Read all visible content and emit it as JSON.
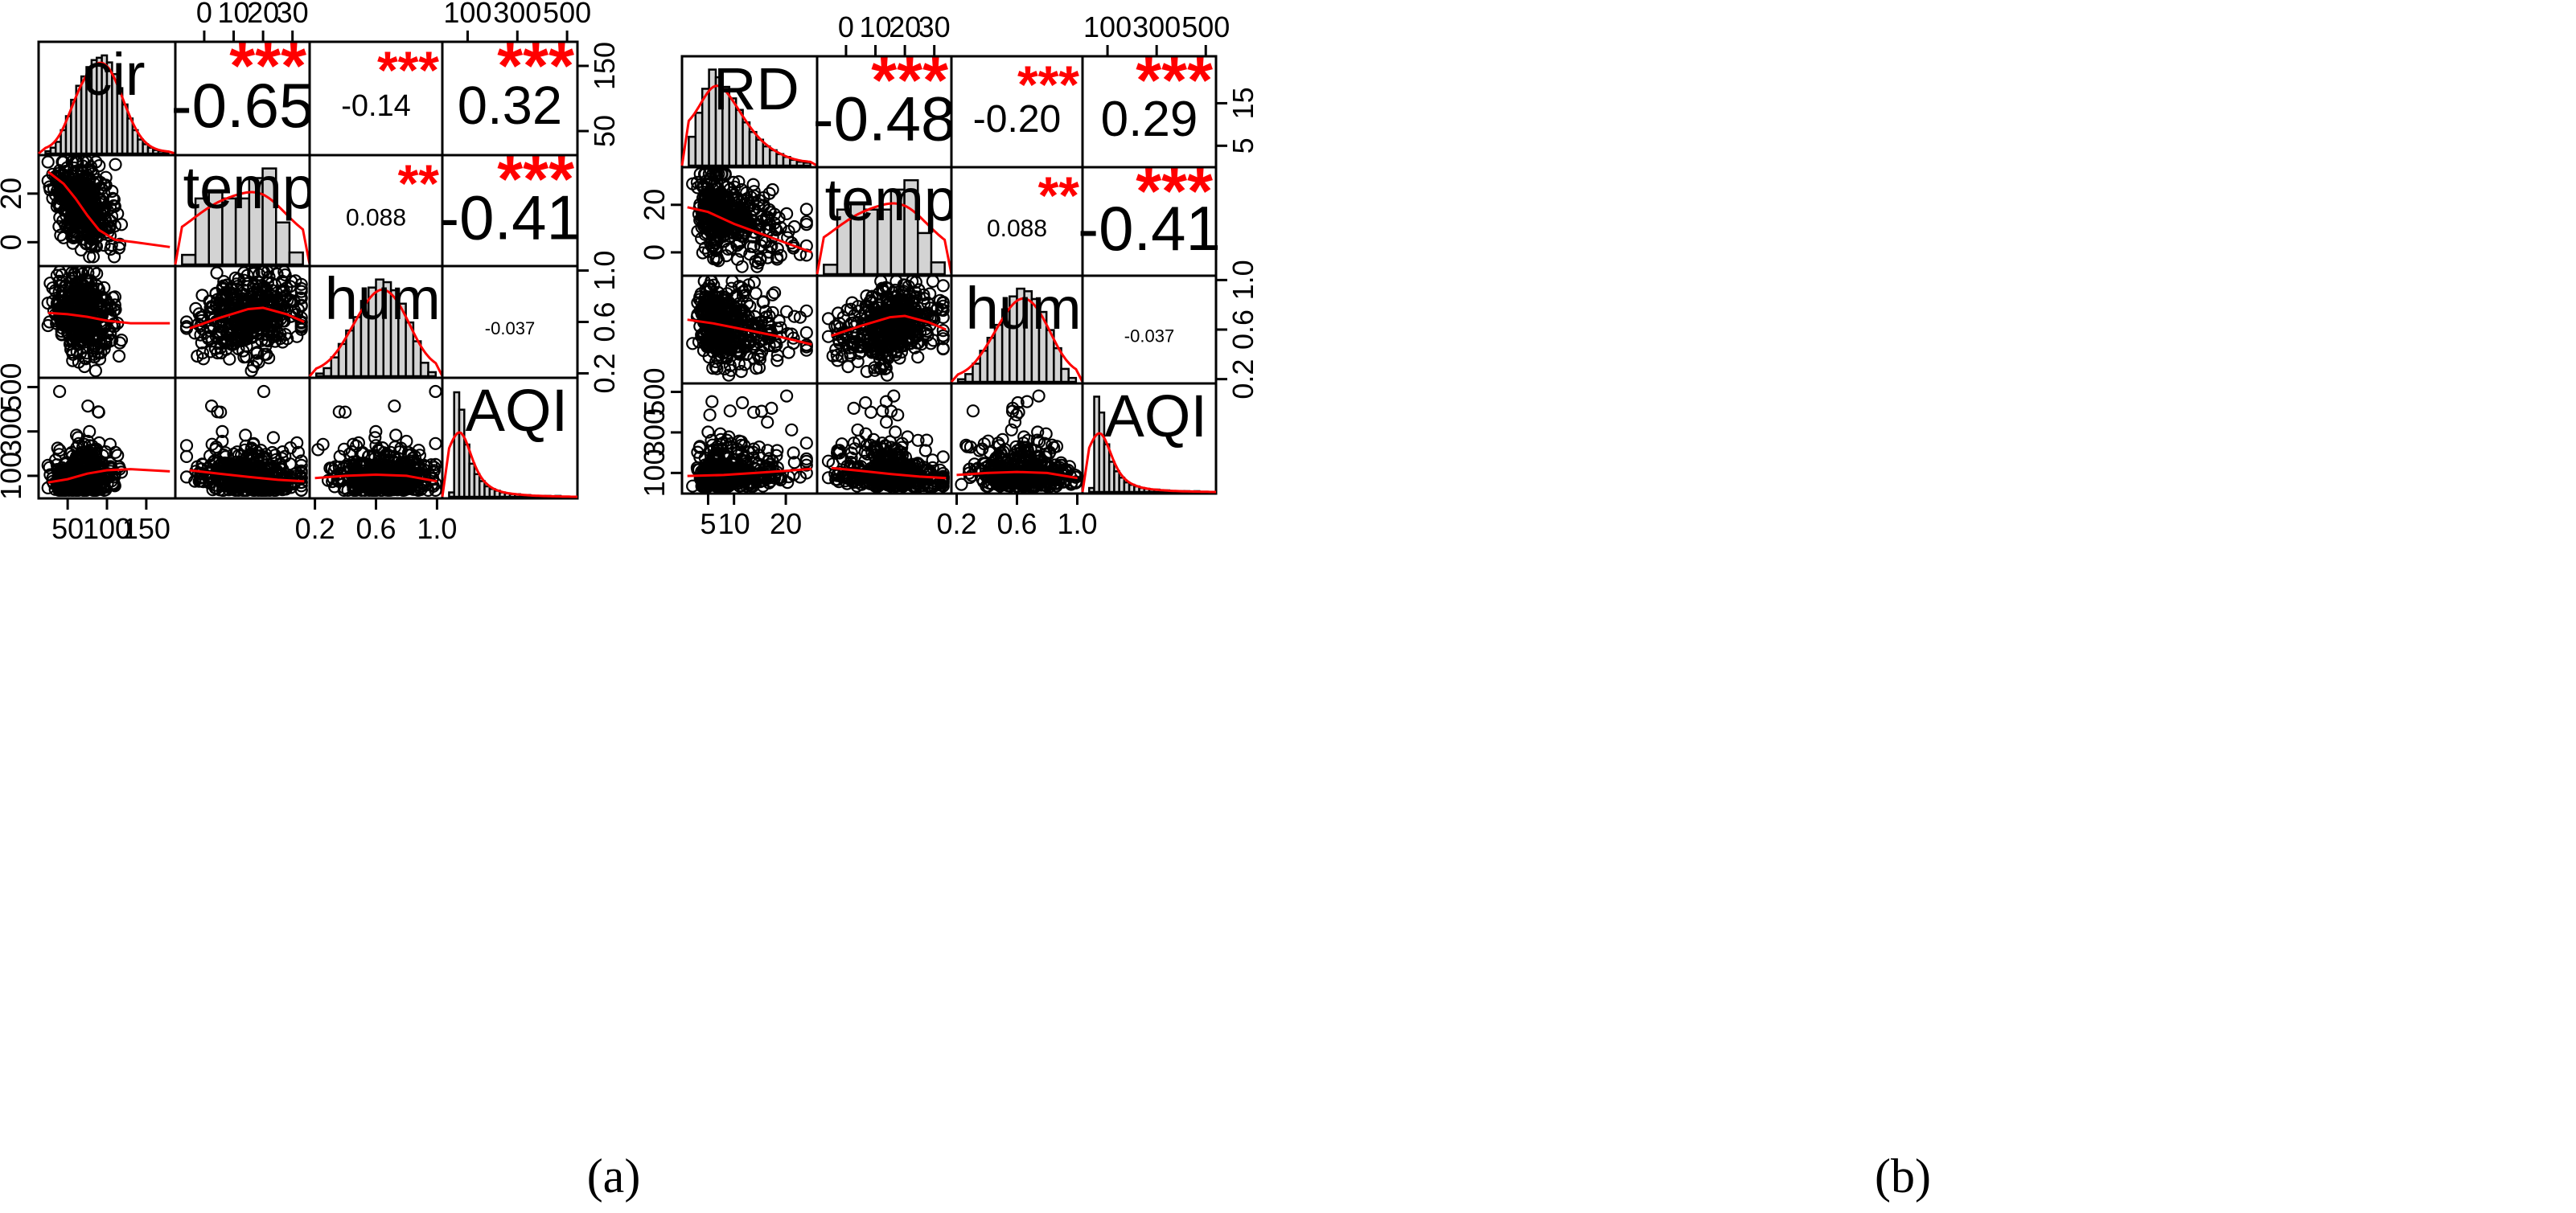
{
  "chart_data": [
    {
      "type": "scatter-matrix",
      "panel_label": "(a)",
      "variables": [
        "cir",
        "temp",
        "hum",
        "AQI"
      ],
      "correlations": [
        {
          "pair": [
            "cir",
            "temp"
          ],
          "r": "-0.65",
          "stars": "***"
        },
        {
          "pair": [
            "cir",
            "hum"
          ],
          "r": "-0.14",
          "stars": "***"
        },
        {
          "pair": [
            "cir",
            "AQI"
          ],
          "r": "0.32",
          "stars": "***"
        },
        {
          "pair": [
            "temp",
            "hum"
          ],
          "r": "0.088",
          "stars": "**"
        },
        {
          "pair": [
            "temp",
            "AQI"
          ],
          "r": "-0.41",
          "stars": "***"
        },
        {
          "pair": [
            "hum",
            "AQI"
          ],
          "r": "-0.037",
          "stars": ""
        }
      ],
      "axes": {
        "cir": {
          "range": [
            20,
            180
          ],
          "ticks": [
            50,
            100,
            150
          ]
        },
        "temp": {
          "range": [
            -8,
            34
          ],
          "ticks": [
            0,
            10,
            20,
            30
          ]
        },
        "hum": {
          "range": [
            0.2,
            1.0
          ],
          "ticks": [
            0.2,
            0.6,
            1.0
          ]
        },
        "AQI": {
          "range": [
            20,
            520
          ],
          "ticks": [
            100,
            300,
            500
          ]
        }
      },
      "y_axis_labels": {
        "cir": [
          "50",
          "150"
        ],
        "temp": [
          "0",
          "20"
        ],
        "hum": [
          "0.2",
          "0.6",
          "1.0"
        ],
        "AQI": [
          "100",
          "300",
          "500"
        ]
      },
      "y_axis_ticks": {
        "cir": [
          50,
          150
        ],
        "temp": [
          0,
          20
        ],
        "hum": [
          0.2,
          0.6,
          1.0
        ],
        "AQI": [
          100,
          300,
          500
        ]
      },
      "top_axis_labels": {
        "temp": [
          "0",
          "10",
          "20",
          "30"
        ],
        "AQI": [
          "100",
          "300",
          "500"
        ]
      },
      "bottom_axis_labels": {
        "cir": [
          "50",
          "100",
          "150"
        ],
        "hum": [
          "0.2",
          "0.6",
          "1.0"
        ]
      },
      "histograms": {
        "cir": {
          "range": [
            20,
            180
          ],
          "counts": [
            2,
            5,
            10,
            20,
            32,
            46,
            58,
            66,
            74,
            80,
            82,
            84,
            78,
            68,
            56,
            42,
            30,
            20,
            12,
            8,
            5,
            3,
            2,
            1
          ]
        },
        "temp": {
          "range": [
            -8,
            34
          ],
          "counts": [
            8,
            55,
            60,
            55,
            55,
            72,
            80,
            35,
            10
          ]
        },
        "hum": {
          "range": [
            0.2,
            1.0
          ],
          "counts": [
            2,
            6,
            14,
            24,
            34,
            44,
            56,
            66,
            72,
            70,
            64,
            54,
            40,
            26,
            10,
            3
          ]
        },
        "AQI": {
          "range": [
            20,
            520
          ],
          "counts": [
            5,
            120,
            100,
            60,
            38,
            26,
            18,
            12,
            9,
            7,
            5,
            4,
            3,
            3,
            2,
            2,
            1,
            1,
            1,
            1,
            0,
            1,
            0,
            0
          ]
        }
      },
      "smoothers": {
        "temp~cir": [
          [
            25,
            29
          ],
          [
            45,
            24
          ],
          [
            60,
            18
          ],
          [
            75,
            11
          ],
          [
            90,
            5
          ],
          [
            110,
            1
          ],
          [
            135,
            0
          ],
          [
            180,
            -2
          ]
        ],
        "hum~cir": [
          [
            25,
            0.67
          ],
          [
            50,
            0.66
          ],
          [
            75,
            0.64
          ],
          [
            100,
            0.61
          ],
          [
            130,
            0.59
          ],
          [
            180,
            0.59
          ]
        ],
        "AQI~cir": [
          [
            25,
            70
          ],
          [
            50,
            85
          ],
          [
            75,
            110
          ],
          [
            100,
            125
          ],
          [
            130,
            130
          ],
          [
            180,
            120
          ]
        ],
        "hum~temp": [
          [
            -5,
            0.55
          ],
          [
            5,
            0.63
          ],
          [
            15,
            0.7
          ],
          [
            20,
            0.71
          ],
          [
            28,
            0.66
          ],
          [
            34,
            0.6
          ]
        ],
        "AQI~temp": [
          [
            -5,
            125
          ],
          [
            5,
            110
          ],
          [
            15,
            95
          ],
          [
            25,
            82
          ],
          [
            34,
            75
          ]
        ],
        "AQI~hum": [
          [
            0.2,
            90
          ],
          [
            0.4,
            100
          ],
          [
            0.6,
            105
          ],
          [
            0.8,
            100
          ],
          [
            1.0,
            75
          ]
        ]
      }
    },
    {
      "type": "scatter-matrix",
      "panel_label": "(b)",
      "variables": [
        "RD",
        "temp",
        "hum",
        "AQI"
      ],
      "correlations": [
        {
          "pair": [
            "RD",
            "temp"
          ],
          "r": "-0.48",
          "stars": "***"
        },
        {
          "pair": [
            "RD",
            "hum"
          ],
          "r": "-0.20",
          "stars": "***"
        },
        {
          "pair": [
            "RD",
            "AQI"
          ],
          "r": "0.29",
          "stars": "***"
        },
        {
          "pair": [
            "temp",
            "hum"
          ],
          "r": "0.088",
          "stars": "**"
        },
        {
          "pair": [
            "temp",
            "AQI"
          ],
          "r": "-0.41",
          "stars": "***"
        },
        {
          "pair": [
            "hum",
            "AQI"
          ],
          "r": "-0.037",
          "stars": ""
        }
      ],
      "axes": {
        "RD": {
          "range": [
            1,
            25
          ],
          "ticks": [
            5,
            10,
            20
          ]
        },
        "temp": {
          "range": [
            -8,
            34
          ],
          "ticks": [
            0,
            10,
            20,
            30
          ]
        },
        "hum": {
          "range": [
            0.2,
            1.0
          ],
          "ticks": [
            0.2,
            0.6,
            1.0
          ]
        },
        "AQI": {
          "range": [
            20,
            520
          ],
          "ticks": [
            100,
            300,
            500
          ]
        }
      },
      "y_axis_labels": {
        "RD": [
          "5",
          "15"
        ],
        "temp": [
          "0",
          "20"
        ],
        "hum": [
          "0.2",
          "0.6",
          "1.0"
        ],
        "AQI": [
          "100",
          "300",
          "500"
        ]
      },
      "y_axis_ticks": {
        "RD": [
          5,
          15
        ],
        "temp": [
          0,
          20
        ],
        "hum": [
          0.2,
          0.6,
          1.0
        ],
        "AQI": [
          100,
          300,
          500
        ]
      },
      "top_axis_labels": {
        "temp": [
          "0",
          "10",
          "20",
          "30"
        ],
        "AQI": [
          "100",
          "300",
          "500"
        ]
      },
      "bottom_axis_labels": {
        "RD": [
          "5",
          "10",
          "20"
        ],
        "hum": [
          "0.2",
          "0.6",
          "1.0"
        ]
      },
      "histograms": {
        "RD": {
          "range": [
            1,
            25
          ],
          "counts": [
            30,
            55,
            80,
            100,
            92,
            82,
            70,
            58,
            45,
            35,
            27,
            20,
            16,
            12,
            9,
            6,
            4,
            3
          ]
        },
        "temp": {
          "range": [
            -8,
            34
          ],
          "counts": [
            8,
            55,
            60,
            55,
            55,
            72,
            80,
            35,
            10
          ]
        },
        "hum": {
          "range": [
            0.2,
            1.0
          ],
          "counts": [
            2,
            6,
            14,
            24,
            34,
            44,
            56,
            66,
            72,
            70,
            64,
            54,
            40,
            26,
            10,
            3
          ]
        },
        "AQI": {
          "range": [
            20,
            520
          ],
          "counts": [
            5,
            120,
            100,
            60,
            38,
            26,
            18,
            12,
            9,
            7,
            5,
            4,
            3,
            3,
            2,
            2,
            1,
            1,
            1,
            1,
            0,
            1,
            0,
            0
          ]
        }
      },
      "smoothers": {
        "temp~RD": [
          [
            1,
            19
          ],
          [
            5,
            17
          ],
          [
            10,
            12
          ],
          [
            15,
            8
          ],
          [
            20,
            4
          ],
          [
            25,
            0
          ]
        ],
        "hum~RD": [
          [
            1,
            0.68
          ],
          [
            6,
            0.65
          ],
          [
            12,
            0.6
          ],
          [
            18,
            0.55
          ],
          [
            25,
            0.48
          ]
        ],
        "AQI~RD": [
          [
            1,
            85
          ],
          [
            8,
            90
          ],
          [
            14,
            100
          ],
          [
            20,
            110
          ],
          [
            25,
            120
          ]
        ],
        "hum~temp": [
          [
            -5,
            0.55
          ],
          [
            5,
            0.63
          ],
          [
            15,
            0.7
          ],
          [
            20,
            0.71
          ],
          [
            28,
            0.66
          ],
          [
            34,
            0.6
          ]
        ],
        "AQI~temp": [
          [
            -5,
            125
          ],
          [
            5,
            110
          ],
          [
            15,
            95
          ],
          [
            25,
            82
          ],
          [
            34,
            75
          ]
        ],
        "AQI~hum": [
          [
            0.2,
            90
          ],
          [
            0.4,
            100
          ],
          [
            0.6,
            105
          ],
          [
            0.8,
            100
          ],
          [
            1.0,
            75
          ]
        ]
      }
    }
  ]
}
